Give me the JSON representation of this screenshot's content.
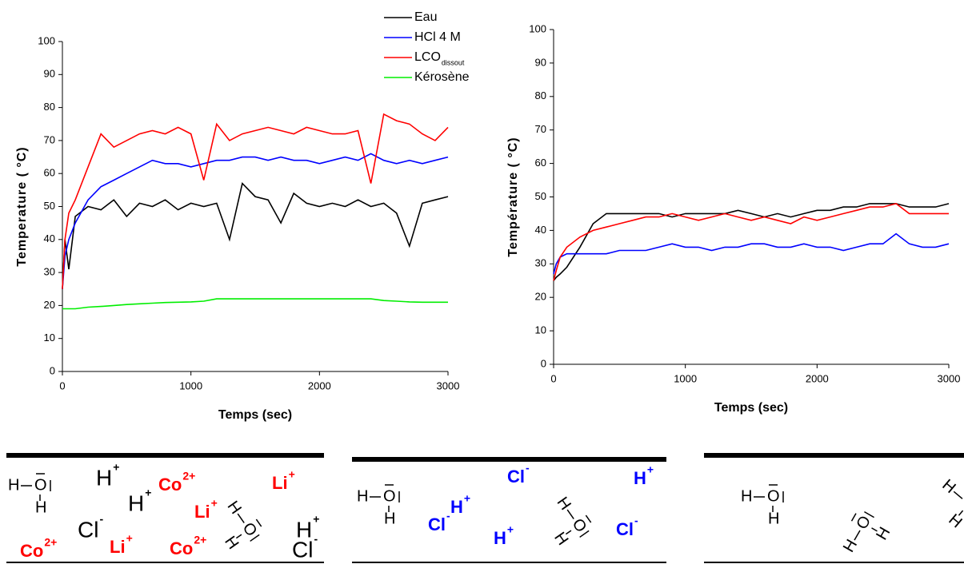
{
  "chart_data": [
    {
      "type": "line",
      "xlabel": "Temps (sec)",
      "ylabel": "Temperature ( °C)",
      "legend": true,
      "xlim": [
        0,
        3000
      ],
      "xticks": [
        0,
        1000,
        2000,
        3000
      ],
      "ylim": [
        0,
        100
      ],
      "yticks": [
        0,
        10,
        20,
        30,
        40,
        50,
        60,
        70,
        80,
        90,
        100
      ],
      "x": [
        0,
        20,
        50,
        100,
        200,
        300,
        400,
        500,
        600,
        700,
        800,
        900,
        1000,
        1100,
        1200,
        1300,
        1400,
        1500,
        1600,
        1700,
        1800,
        1900,
        2000,
        2100,
        2200,
        2300,
        2400,
        2500,
        2600,
        2700,
        2800,
        2900,
        3000
      ],
      "series": [
        {
          "name": "Eau",
          "color": "#000000",
          "values": [
            25,
            40,
            31,
            47,
            50,
            49,
            52,
            47,
            51,
            50,
            52,
            49,
            51,
            50,
            51,
            40,
            57,
            53,
            52,
            45,
            54,
            51,
            50,
            51,
            50,
            52,
            50,
            51,
            48,
            38,
            51,
            52,
            53
          ]
        },
        {
          "name": "HCl 4 M",
          "color": "#0000ff",
          "values": [
            25,
            35,
            40,
            45,
            52,
            56,
            58,
            60,
            62,
            64,
            63,
            63,
            62,
            63,
            64,
            64,
            65,
            65,
            64,
            65,
            64,
            64,
            63,
            64,
            65,
            64,
            66,
            64,
            63,
            64,
            63,
            64,
            65
          ]
        },
        {
          "name": "LCO",
          "name_subscript": "dissout",
          "color": "#ff0000",
          "values": [
            25,
            40,
            48,
            52,
            62,
            72,
            68,
            70,
            72,
            73,
            72,
            74,
            72,
            58,
            75,
            70,
            72,
            73,
            74,
            73,
            72,
            74,
            73,
            72,
            72,
            73,
            57,
            78,
            76,
            75,
            72,
            70,
            74
          ]
        },
        {
          "name": "Kérosène",
          "color": "#00ee00",
          "values": [
            19,
            19,
            19,
            19,
            19.5,
            19.7,
            20,
            20.3,
            20.5,
            20.7,
            20.9,
            21,
            21.1,
            21.3,
            22,
            22,
            22,
            22,
            22,
            22,
            22,
            22,
            22,
            22,
            22,
            22,
            22,
            21.5,
            21.3,
            21.1,
            21,
            21,
            21
          ]
        }
      ]
    },
    {
      "type": "line",
      "xlabel": "Temps (sec)",
      "ylabel": "Température ( °C)",
      "legend": false,
      "xlim": [
        0,
        3000
      ],
      "xticks": [
        0,
        1000,
        2000,
        3000
      ],
      "ylim": [
        0,
        100
      ],
      "yticks": [
        0,
        10,
        20,
        30,
        40,
        50,
        60,
        70,
        80,
        90,
        100
      ],
      "x": [
        0,
        20,
        50,
        100,
        200,
        300,
        400,
        500,
        600,
        700,
        800,
        900,
        1000,
        1100,
        1200,
        1300,
        1400,
        1500,
        1600,
        1700,
        1800,
        1900,
        2000,
        2100,
        2200,
        2300,
        2400,
        2500,
        2600,
        2700,
        2800,
        2900,
        3000
      ],
      "series": [
        {
          "color": "#000000",
          "values": [
            25,
            26,
            27,
            29,
            35,
            42,
            45,
            45,
            45,
            45,
            45,
            44,
            45,
            45,
            45,
            45,
            46,
            45,
            44,
            45,
            44,
            45,
            46,
            46,
            47,
            47,
            48,
            48,
            48,
            47,
            47,
            47,
            48
          ]
        },
        {
          "color": "#0000ff",
          "values": [
            27,
            30,
            32,
            33,
            33,
            33,
            33,
            34,
            34,
            34,
            35,
            36,
            35,
            35,
            34,
            35,
            35,
            36,
            36,
            35,
            35,
            36,
            35,
            35,
            34,
            35,
            36,
            36,
            39,
            36,
            35,
            35,
            36
          ]
        },
        {
          "color": "#ff0000",
          "values": [
            25,
            28,
            32,
            35,
            38,
            40,
            41,
            42,
            43,
            44,
            44,
            45,
            44,
            43,
            44,
            45,
            44,
            43,
            44,
            43,
            42,
            44,
            43,
            44,
            45,
            46,
            47,
            47,
            48,
            45,
            45,
            45,
            45
          ]
        }
      ]
    }
  ],
  "water": {
    "hydrogen": "H",
    "oxygen": "O"
  },
  "panels": [
    {
      "ions": [
        {
          "symbol": "H",
          "charge": "+",
          "color": "#000000"
        },
        {
          "symbol": "Co",
          "charge": "2+",
          "color": "#ff0000"
        },
        {
          "symbol": "Li",
          "charge": "+",
          "color": "#ff0000"
        },
        {
          "symbol": "H",
          "charge": "+",
          "color": "#000000"
        },
        {
          "symbol": "Cl",
          "charge": "-",
          "color": "#000000"
        },
        {
          "symbol": "Li",
          "charge": "+",
          "color": "#ff0000"
        },
        {
          "symbol": "H",
          "charge": "+",
          "color": "#000000"
        },
        {
          "symbol": "Co",
          "charge": "2+",
          "color": "#ff0000"
        },
        {
          "symbol": "Li",
          "charge": "+",
          "color": "#ff0000"
        },
        {
          "symbol": "Co",
          "charge": "2+",
          "color": "#ff0000"
        },
        {
          "symbol": "Cl",
          "charge": "-",
          "color": "#000000"
        }
      ]
    },
    {
      "ions": [
        {
          "symbol": "H",
          "charge": "+",
          "color": "#0000ff"
        },
        {
          "symbol": "Cl",
          "charge": "-",
          "color": "#0000ff"
        },
        {
          "symbol": "H",
          "charge": "+",
          "color": "#0000ff"
        },
        {
          "symbol": "Cl",
          "charge": "-",
          "color": "#0000ff"
        },
        {
          "symbol": "H",
          "charge": "+",
          "color": "#0000ff"
        },
        {
          "symbol": "Cl",
          "charge": "-",
          "color": "#0000ff"
        }
      ]
    },
    {
      "ions": []
    }
  ]
}
